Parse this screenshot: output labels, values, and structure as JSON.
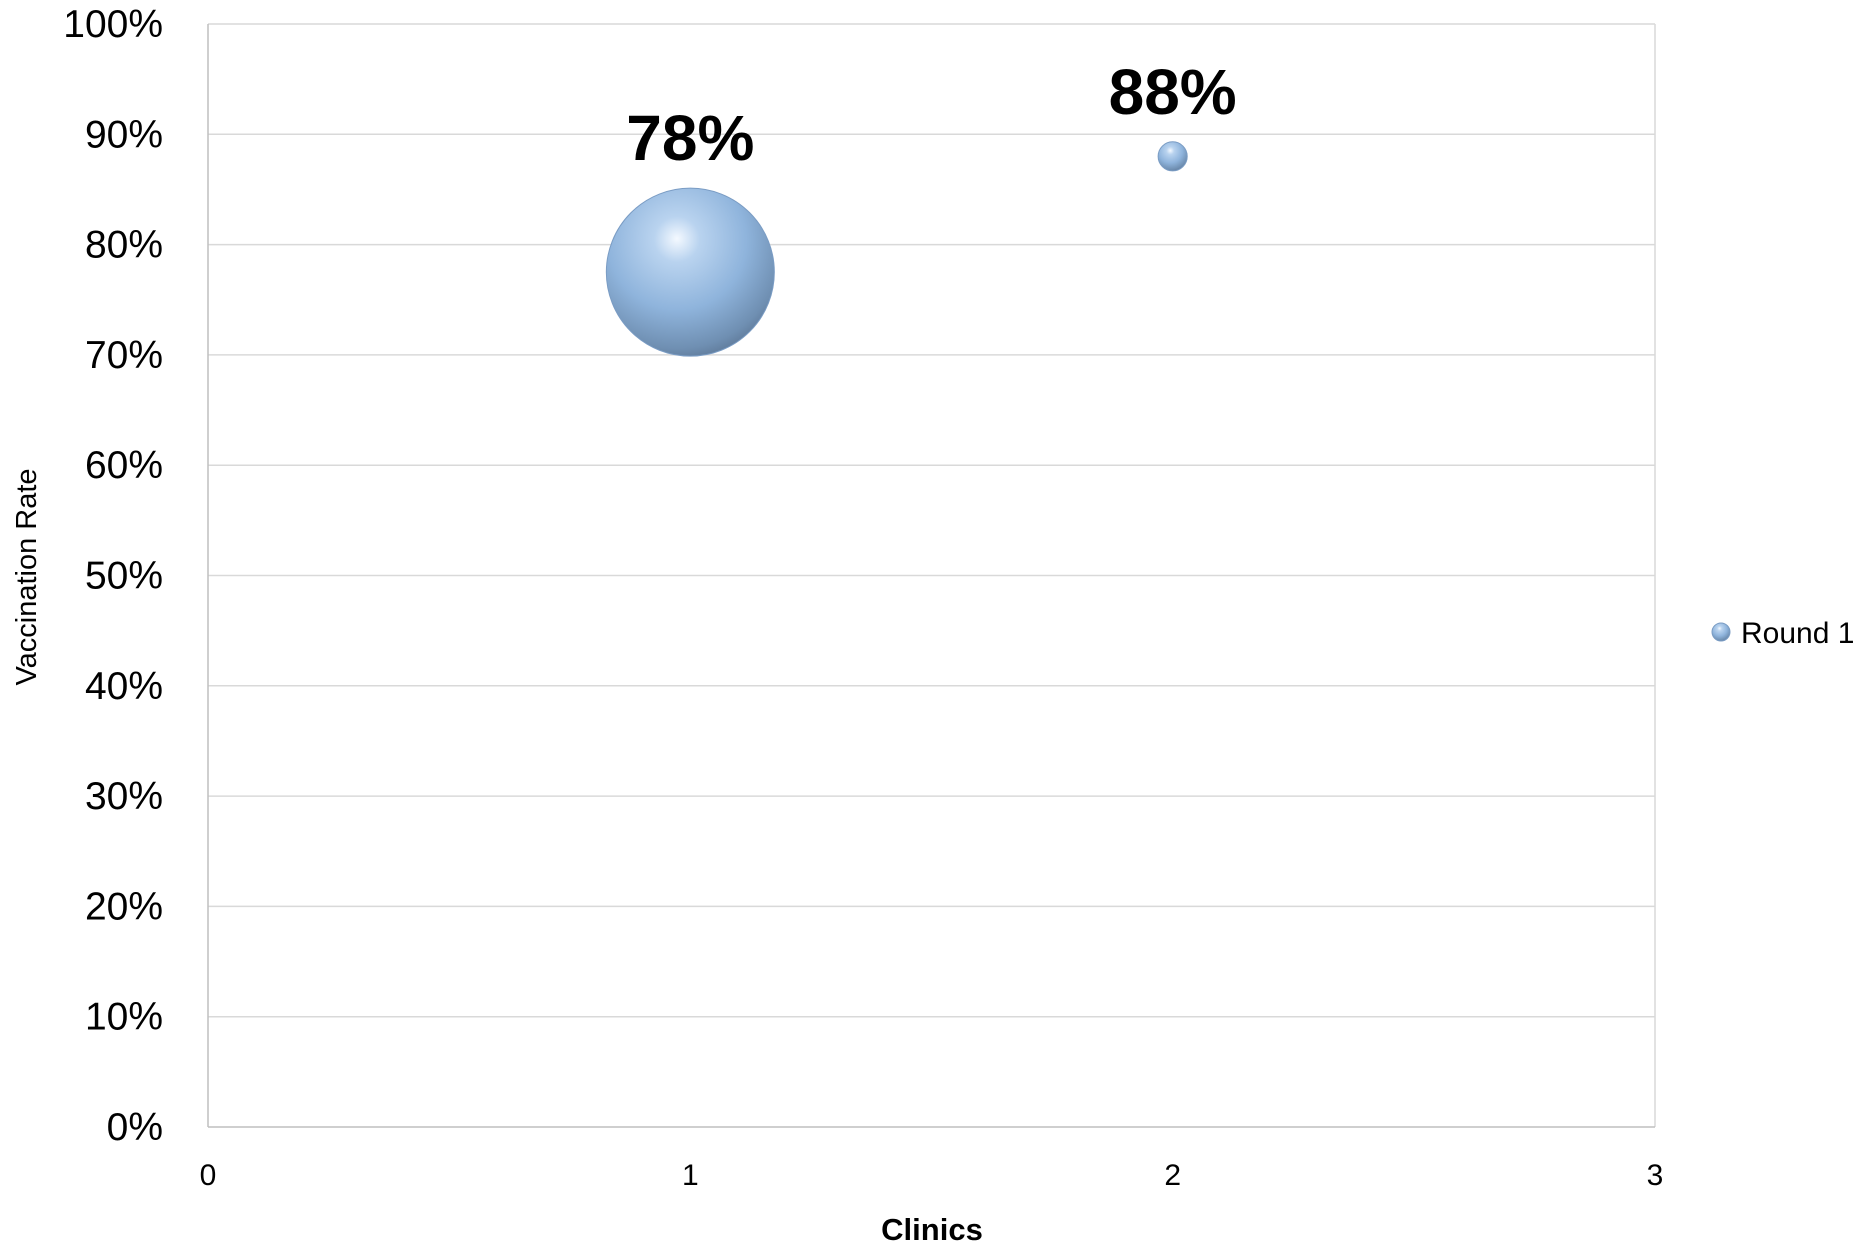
{
  "chart_data": {
    "type": "bubble",
    "xlabel": "Clinics",
    "ylabel": "Vaccination Rate",
    "xlim": [
      0,
      3
    ],
    "ylim": [
      0,
      1
    ],
    "x_ticks": [
      "0",
      "1",
      "2",
      "3"
    ],
    "y_ticks": [
      "0%",
      "10%",
      "20%",
      "30%",
      "40%",
      "50%",
      "60%",
      "70%",
      "80%",
      "90%",
      "100%"
    ],
    "grid": true,
    "legend_position": "right",
    "series": [
      {
        "name": "Round 1",
        "color": "#8fb4dc",
        "points": [
          {
            "x": 1,
            "y": 0.775,
            "size": 100,
            "label": "78%"
          },
          {
            "x": 2,
            "y": 0.88,
            "size": 3,
            "label": "88%"
          }
        ]
      }
    ]
  }
}
